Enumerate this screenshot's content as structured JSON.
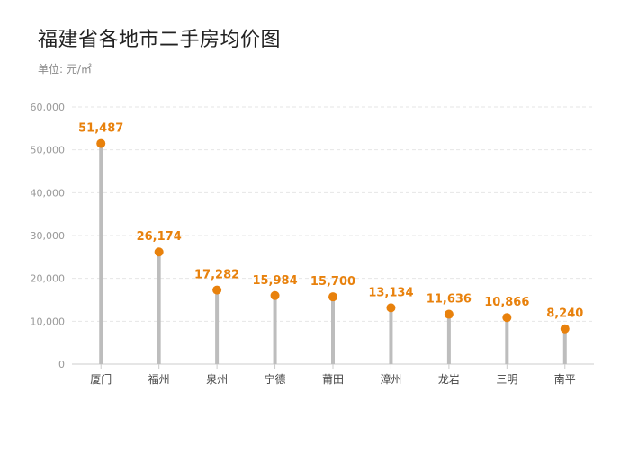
{
  "chart_data": {
    "type": "lollipop",
    "title": "福建省各地市二手房均价图",
    "subtitle": "单位: 元/㎡",
    "categories": [
      "厦门",
      "福州",
      "泉州",
      "宁德",
      "莆田",
      "漳州",
      "龙岩",
      "三明",
      "南平"
    ],
    "values": [
      51487,
      26174,
      17282,
      15984,
      15700,
      13134,
      11636,
      10866,
      8240
    ],
    "value_labels": [
      "51,487",
      "26,174",
      "17,282",
      "15,984",
      "15,700",
      "13,134",
      "11,636",
      "10,866",
      "8,240"
    ],
    "ylim": [
      0,
      60000
    ],
    "yticks": [
      0,
      10000,
      20000,
      30000,
      40000,
      50000,
      60000
    ],
    "ytick_labels": [
      "0",
      "10,000",
      "20,000",
      "30,000",
      "40,000",
      "50,000",
      "60,000"
    ],
    "grid": true,
    "colors": {
      "stem": "#bdbdbd",
      "marker": "#e8810c",
      "label": "#e8810c",
      "grid": "#e6e6e6",
      "axis": "#cccccc"
    }
  }
}
